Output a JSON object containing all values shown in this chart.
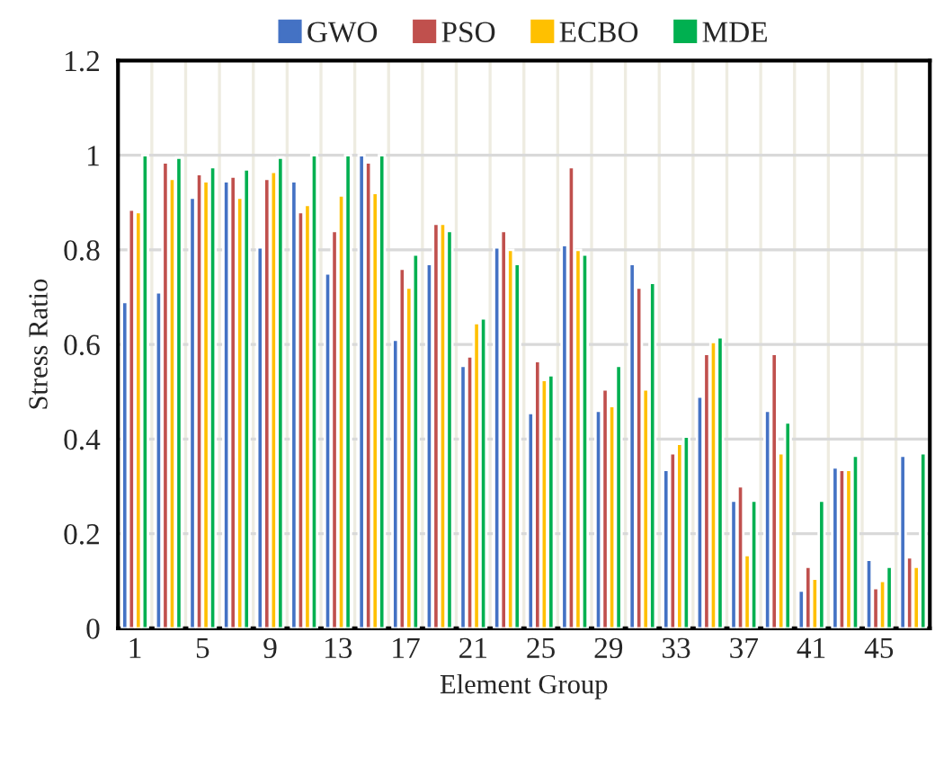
{
  "chart_data": {
    "type": "bar",
    "xlabel": "Element Group",
    "ylabel": "Stress Ratio",
    "categories": [
      "1",
      null,
      "5",
      null,
      "9",
      null,
      "13",
      null,
      "17",
      null,
      "21",
      null,
      "25",
      null,
      "29",
      null,
      "33",
      null,
      "37",
      null,
      "41",
      null,
      "45",
      null
    ],
    "series": [
      {
        "name": "GWO",
        "color": "#4472c4",
        "values": [
          0.69,
          0.71,
          0.91,
          0.945,
          0.805,
          0.945,
          0.75,
          1.0,
          0.61,
          0.77,
          0.555,
          0.805,
          0.455,
          0.81,
          0.46,
          0.77,
          0.335,
          0.49,
          0.27,
          0.46,
          0.08,
          0.34,
          0.145,
          0.365
        ]
      },
      {
        "name": "PSO",
        "color": "#c0504d",
        "values": [
          0.885,
          0.985,
          0.96,
          0.955,
          0.95,
          0.88,
          0.84,
          0.985,
          0.76,
          0.855,
          0.575,
          0.84,
          0.565,
          0.975,
          0.505,
          0.72,
          0.37,
          0.58,
          0.3,
          0.58,
          0.13,
          0.335,
          0.085,
          0.15
        ]
      },
      {
        "name": "ECBO",
        "color": "#ffc000",
        "values": [
          0.88,
          0.95,
          0.945,
          0.91,
          0.965,
          0.895,
          0.915,
          0.92,
          0.72,
          0.855,
          0.645,
          0.8,
          0.525,
          0.8,
          0.47,
          0.505,
          0.39,
          0.605,
          0.155,
          0.37,
          0.105,
          0.335,
          0.1,
          0.13
        ]
      },
      {
        "name": "MDE",
        "color": "#00b050",
        "values": [
          1.0,
          0.995,
          0.975,
          0.97,
          0.995,
          1.0,
          1.0,
          1.0,
          0.79,
          0.84,
          0.655,
          0.77,
          0.535,
          0.79,
          0.555,
          0.73,
          0.405,
          0.615,
          0.27,
          0.435,
          0.27,
          0.365,
          0.13,
          0.37
        ]
      }
    ],
    "ylim": [
      0,
      1.2
    ],
    "yticks": [
      0,
      0.2,
      0.4,
      0.6,
      0.8,
      1,
      1.2
    ],
    "grid": true,
    "legend": "top"
  }
}
